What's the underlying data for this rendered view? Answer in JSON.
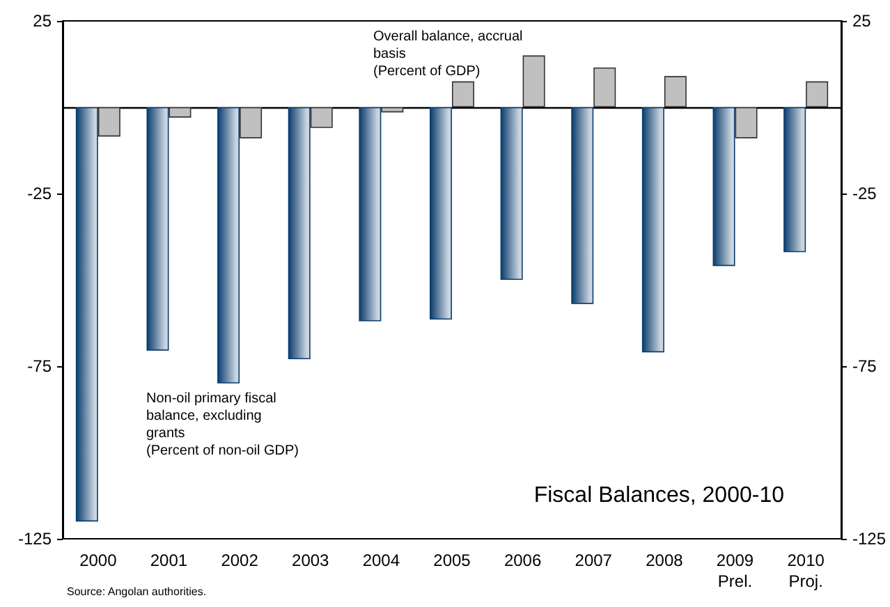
{
  "chart_data": {
    "type": "bar",
    "title": "Fiscal Balances, 2000-10",
    "annotations": [
      "Source: Angolan authorities."
    ],
    "categories": [
      "2000",
      "2001",
      "2002",
      "2003",
      "2004",
      "2005",
      "2006",
      "2007",
      "2008",
      "2009\nPrel.",
      "2010\nProj."
    ],
    "series": [
      {
        "name": "Non-oil primary fiscal balance, excluding grants\n(Percent of non-oil GDP)",
        "color": "#0b3d6f",
        "values": [
          -120,
          -70.5,
          -80,
          -73,
          -62,
          -61.5,
          -50,
          -57,
          -71,
          -46,
          -42
        ]
      },
      {
        "name": "Overall balance, accrual basis\n(Percent of GDP)",
        "color": "#c0c0c0",
        "values": [
          -8.5,
          -3,
          -9,
          -6,
          -1.5,
          7.5,
          15,
          11.5,
          9,
          -9,
          7.5
        ]
      }
    ],
    "ylim": [
      -125,
      25
    ],
    "yticks": [
      25,
      -25,
      -75,
      -125
    ],
    "y2lim": [
      -125,
      25
    ],
    "y2ticks": [
      25,
      -25,
      -75,
      -125
    ],
    "legend": false,
    "grid": false
  }
}
